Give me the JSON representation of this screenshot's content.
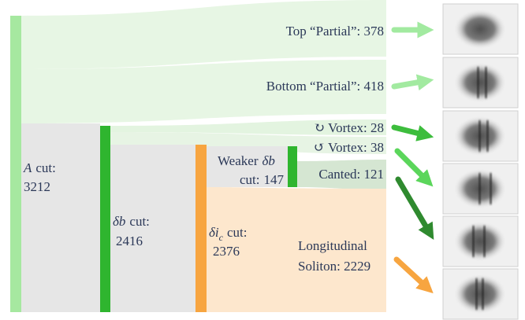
{
  "nodes": [
    {
      "symbol": "A",
      "label": "cut:",
      "count": "3212"
    },
    {
      "symbol": "δb",
      "label": "cut:",
      "count": "2416"
    },
    {
      "symbol": "δi",
      "subscript": "c",
      "label": "cut:",
      "count": "2376"
    },
    {
      "prefix": "Weaker",
      "symbol": "δb",
      "label": "cut:",
      "count": "147"
    }
  ],
  "outcomes": [
    {
      "label": "Top “Partial”: 378"
    },
    {
      "label": "Bottom “Partial”: 418"
    },
    {
      "label": "↻ Vortex: 28"
    },
    {
      "label": "↺ Vortex: 38"
    },
    {
      "label": "Canted: 121"
    },
    {
      "lines": [
        "Longitudinal",
        "Soliton: 2229"
      ]
    }
  ]
}
